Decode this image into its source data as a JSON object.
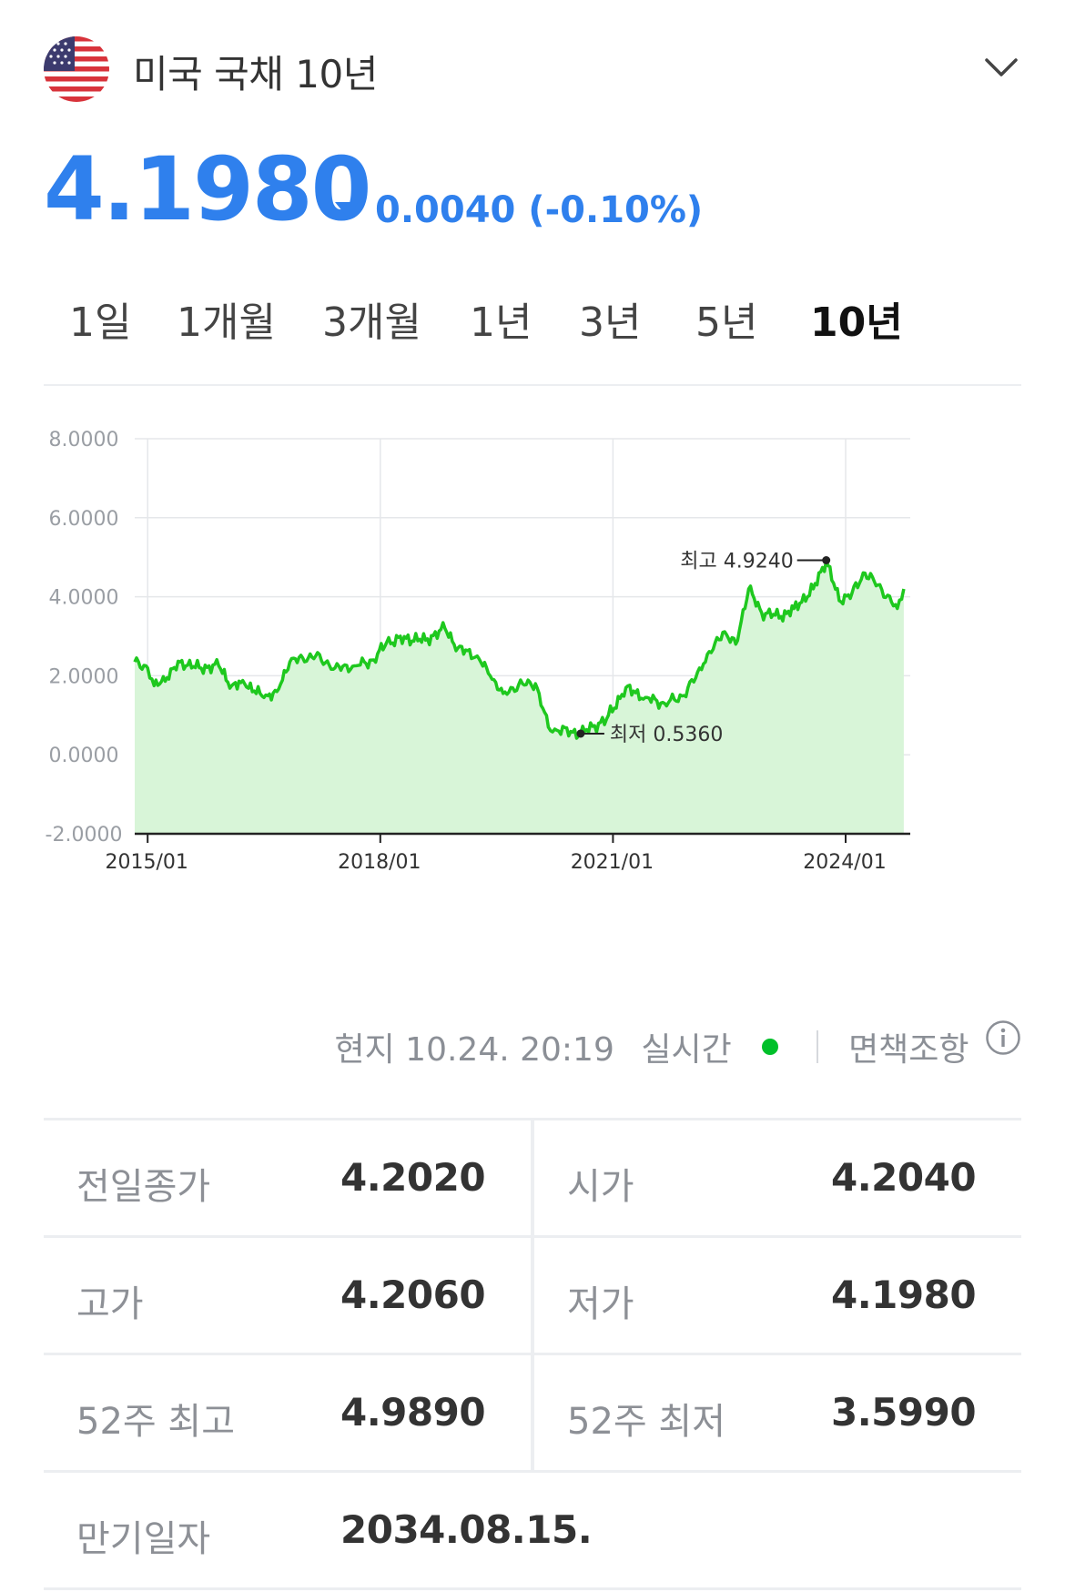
{
  "header": {
    "title": "미국 국채 10년",
    "flag_icon": "us-flag-icon",
    "expand_icon": "chevron-down-icon"
  },
  "quote": {
    "price": "4.1980",
    "direction": "down",
    "change": "0.0040 (-0.10%)",
    "color": "#2f80ed"
  },
  "tabs": [
    {
      "label": "1일",
      "active": false
    },
    {
      "label": "1개월",
      "active": false
    },
    {
      "label": "3개월",
      "active": false
    },
    {
      "label": "1년",
      "active": false
    },
    {
      "label": "3년",
      "active": false
    },
    {
      "label": "5년",
      "active": false
    },
    {
      "label": "10년",
      "active": true
    }
  ],
  "status": {
    "local_time": "현지 10.24. 20:19",
    "realtime": "실시간",
    "realtime_color": "#00c02a",
    "disclaimer": "면책조항"
  },
  "stats": {
    "prev_close_label": "전일종가",
    "prev_close": "4.2020",
    "open_label": "시가",
    "open": "4.2040",
    "high_label": "고가",
    "high": "4.2060",
    "low_label": "저가",
    "low": "4.1980",
    "week52_high_label": "52주 최고",
    "week52_high": "4.9890",
    "week52_low_label": "52주 최저",
    "week52_low": "3.5990",
    "maturity_label": "만기일자",
    "maturity": "2034.08.15."
  },
  "chart_data": {
    "type": "area",
    "line_color": "#1ec81e",
    "fill_color": "#d8f5d8",
    "ylim": [
      -2,
      8
    ],
    "y_ticks": [
      "8.0000",
      "6.0000",
      "4.0000",
      "2.0000",
      "0.0000",
      "-2.0000"
    ],
    "x_ticks": [
      "2015/01",
      "2018/01",
      "2021/01",
      "2024/01"
    ],
    "grid": true,
    "annotations": {
      "max": {
        "label": "최고 4.9240",
        "date": "2023/10",
        "value": 4.924
      },
      "min": {
        "label": "최저 0.5360",
        "date": "2020/08",
        "value": 0.536
      }
    },
    "series": [
      {
        "x": [
          "2014/11",
          "2015/01",
          "2015/02",
          "2015/04",
          "2015/06",
          "2015/09",
          "2015/12",
          "2016/02",
          "2016/04",
          "2016/07",
          "2016/09",
          "2016/11",
          "2017/01",
          "2017/03",
          "2017/06",
          "2017/09",
          "2017/12",
          "2018/02",
          "2018/05",
          "2018/08",
          "2018/11",
          "2019/01",
          "2019/04",
          "2019/06",
          "2019/08",
          "2019/11",
          "2020/01",
          "2020/03",
          "2020/04",
          "2020/08",
          "2020/12",
          "2021/03",
          "2021/06",
          "2021/09",
          "2021/12",
          "2022/03",
          "2022/06",
          "2022/08",
          "2022/10",
          "2022/12",
          "2023/03",
          "2023/05",
          "2023/08",
          "2023/10",
          "2023/12",
          "2024/02",
          "2024/04",
          "2024/06",
          "2024/09",
          "2024/10"
        ],
        "values": [
          2.35,
          2.2,
          1.75,
          1.95,
          2.35,
          2.2,
          2.25,
          1.75,
          1.8,
          1.45,
          1.6,
          2.35,
          2.45,
          2.5,
          2.2,
          2.25,
          2.4,
          2.85,
          2.95,
          2.9,
          3.2,
          2.7,
          2.5,
          2.0,
          1.55,
          1.8,
          1.8,
          0.7,
          0.65,
          0.536,
          0.9,
          1.7,
          1.45,
          1.3,
          1.5,
          2.3,
          3.1,
          2.8,
          4.2,
          3.6,
          3.5,
          3.7,
          4.2,
          4.924,
          3.9,
          4.1,
          4.6,
          4.3,
          3.7,
          4.198
        ]
      }
    ]
  }
}
